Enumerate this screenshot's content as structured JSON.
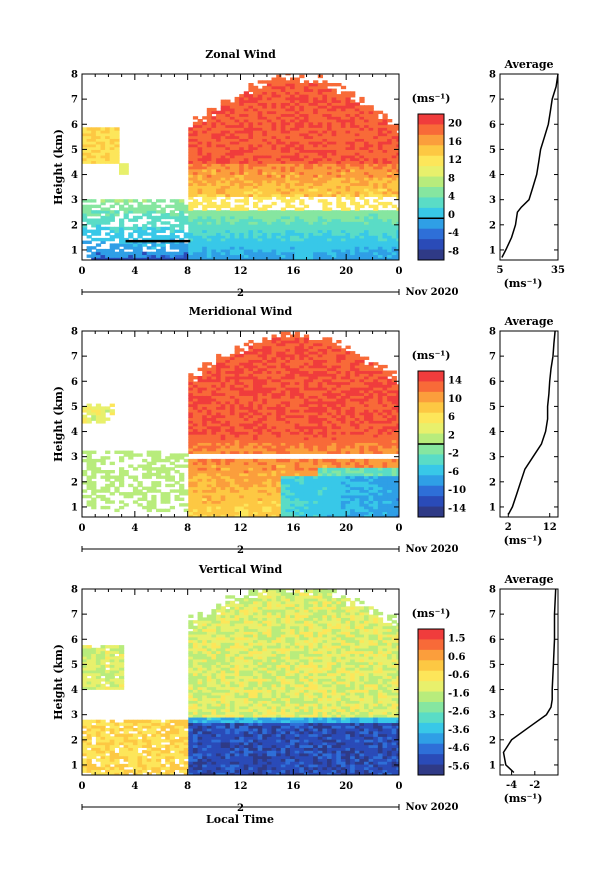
{
  "figure": {
    "x_label": "Local Time",
    "date_label": "Nov 2020",
    "day_label": "2",
    "x_ticks": [
      "0",
      "4",
      "8",
      "12",
      "16",
      "20",
      "0"
    ]
  },
  "chart_data": [
    {
      "type": "heatmap",
      "title": "Zonal Wind",
      "ylabel": "Height (km)",
      "unit_label": "(ms⁻¹)",
      "ylim": [
        0.6,
        8.0
      ],
      "y_ticks": [
        "1",
        "2",
        "3",
        "4",
        "5",
        "6",
        "7",
        "8"
      ],
      "xlim_hours": [
        0,
        24
      ],
      "colorbar": {
        "range": [
          -8,
          20
        ],
        "labels": [
          "20",
          "16",
          "12",
          "8",
          "4",
          "0",
          "-4",
          "-8"
        ],
        "zero_line": 0
      },
      "average_profile": {
        "title": "Average",
        "xlabel": "(ms⁻¹)",
        "xlim": [
          5,
          35
        ],
        "x_ticks": [
          "5",
          "35"
        ],
        "heights": [
          0.7,
          1.0,
          1.5,
          2.0,
          2.5,
          2.7,
          3.0,
          3.5,
          4.0,
          4.5,
          5.0,
          5.5,
          6.0,
          6.5,
          7.0,
          7.5,
          8.0
        ],
        "values": [
          6,
          8,
          11,
          13,
          14,
          16,
          20,
          22,
          24,
          25,
          26,
          28,
          30,
          31,
          32,
          34,
          35
        ]
      }
    },
    {
      "type": "heatmap",
      "title": "Meridional Wind",
      "ylabel": "Height (km)",
      "unit_label": "(ms⁻¹)",
      "ylim": [
        0.6,
        8.0
      ],
      "y_ticks": [
        "1",
        "2",
        "3",
        "4",
        "5",
        "6",
        "7",
        "8"
      ],
      "xlim_hours": [
        0,
        24
      ],
      "colorbar": {
        "range": [
          -16,
          16
        ],
        "labels": [
          "14",
          "10",
          "6",
          "2",
          "-2",
          "-6",
          "-10",
          "-14"
        ],
        "zero_line": 0
      },
      "average_profile": {
        "title": "Average",
        "xlabel": "(ms⁻¹)",
        "xlim": [
          0,
          14
        ],
        "x_ticks": [
          "2",
          "12"
        ],
        "heights": [
          0.7,
          1.0,
          1.5,
          2.0,
          2.5,
          3.0,
          3.5,
          4.0,
          4.5,
          5.0,
          5.5,
          6.0,
          6.5,
          7.0,
          7.5,
          8.0
        ],
        "values": [
          2,
          3,
          4,
          5,
          6,
          8,
          10,
          11,
          11.5,
          11.5,
          11.8,
          12,
          12.3,
          12.8,
          13,
          13.3
        ]
      }
    },
    {
      "type": "heatmap",
      "title": "Vertical Wind",
      "ylabel": "Height (km)",
      "unit_label": "(ms⁻¹)",
      "ylim": [
        0.6,
        8.0
      ],
      "y_ticks": [
        "1",
        "2",
        "3",
        "4",
        "5",
        "6",
        "7",
        "8"
      ],
      "xlim_hours": [
        0,
        24
      ],
      "colorbar": {
        "range": [
          -6,
          2
        ],
        "labels": [
          "1.5",
          "0.6",
          "-0.6",
          "-1.6",
          "-2.6",
          "-3.6",
          "-4.6",
          "-5.6"
        ]
      },
      "average_profile": {
        "title": "Average",
        "xlabel": "(ms⁻¹)",
        "xlim": [
          -5,
          0
        ],
        "x_ticks": [
          "-4",
          "-2"
        ],
        "heights": [
          0.7,
          1.0,
          1.5,
          2.0,
          2.5,
          3.0,
          3.3,
          3.6,
          4.0,
          5.0,
          6.0,
          7.0,
          8.0
        ],
        "values": [
          -3.8,
          -4.5,
          -4.7,
          -4.0,
          -2.5,
          -1.0,
          -0.6,
          -0.5,
          -0.5,
          -0.4,
          -0.3,
          -0.3,
          -0.2
        ]
      }
    }
  ]
}
